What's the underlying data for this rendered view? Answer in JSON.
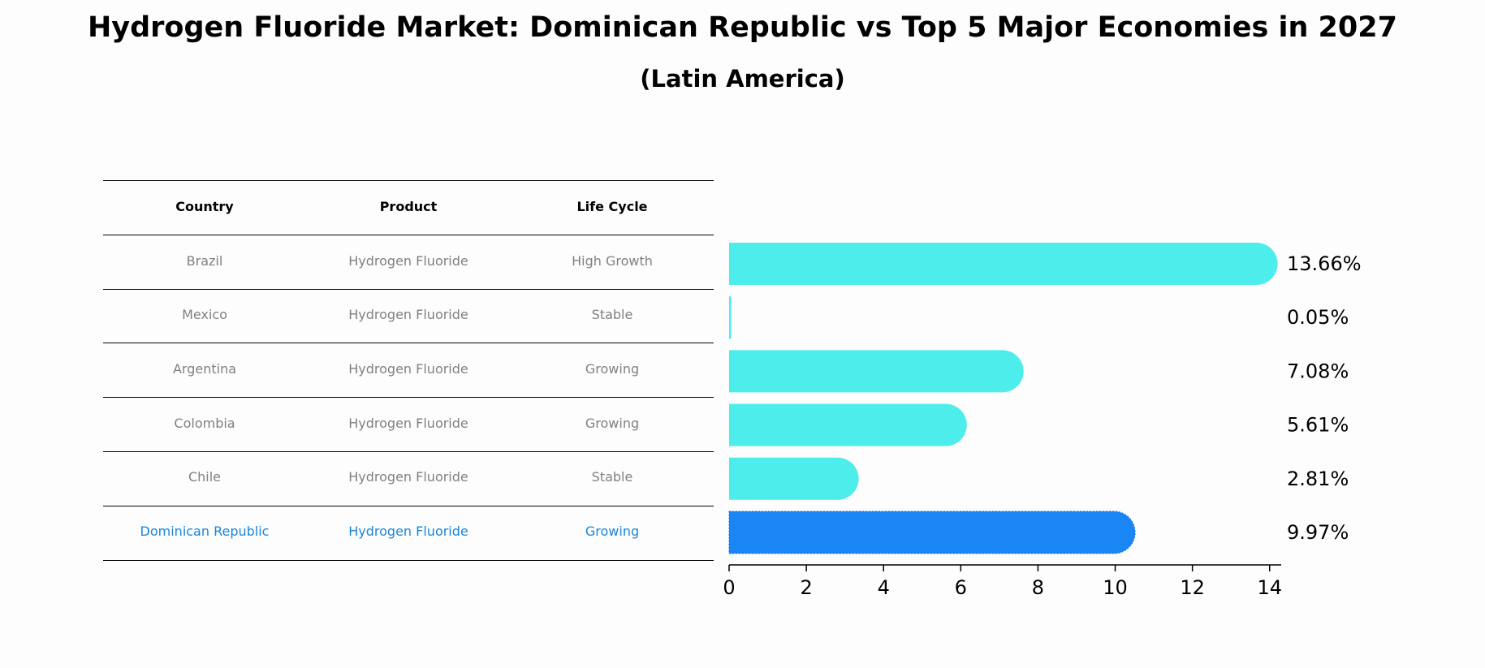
{
  "title": "Hydrogen Fluoride Market: Dominican Republic vs Top 5 Major Economies in 2027",
  "subtitle": "(Latin America)",
  "table": {
    "headers": [
      "Country",
      "Product",
      "Life Cycle"
    ],
    "rows": [
      [
        "Brazil",
        "Hydrogen Fluoride",
        "High Growth"
      ],
      [
        "Mexico",
        "Hydrogen Fluoride",
        "Stable"
      ],
      [
        "Argentina",
        "Hydrogen Fluoride",
        "Growing"
      ],
      [
        "Colombia",
        "Hydrogen Fluoride",
        "Growing"
      ],
      [
        "Chile",
        "Hydrogen Fluoride",
        "Stable"
      ],
      [
        "Dominican Republic",
        "Hydrogen Fluoride",
        "Growing"
      ]
    ],
    "highlight_row": 5
  },
  "colors": {
    "bar": "#4cedeb",
    "highlight": "#1a86f5",
    "highlight_text": "#1a86d9",
    "muted_text": "#808080"
  },
  "chart_data": {
    "type": "bar",
    "orientation": "horizontal",
    "categories": [
      "Brazil",
      "Mexico",
      "Argentina",
      "Colombia",
      "Chile",
      "Dominican Republic"
    ],
    "values": [
      13.66,
      0.05,
      7.08,
      5.61,
      2.81,
      9.97
    ],
    "value_labels": [
      "13.66%",
      "0.05%",
      "7.08%",
      "5.61%",
      "2.81%",
      "9.97%"
    ],
    "highlight_category": "Dominican Republic",
    "xlim": [
      0,
      14.3
    ],
    "xticks": [
      0,
      2,
      4,
      6,
      8,
      10,
      12,
      14
    ],
    "xlabel": "",
    "ylabel": "",
    "grid": false
  }
}
